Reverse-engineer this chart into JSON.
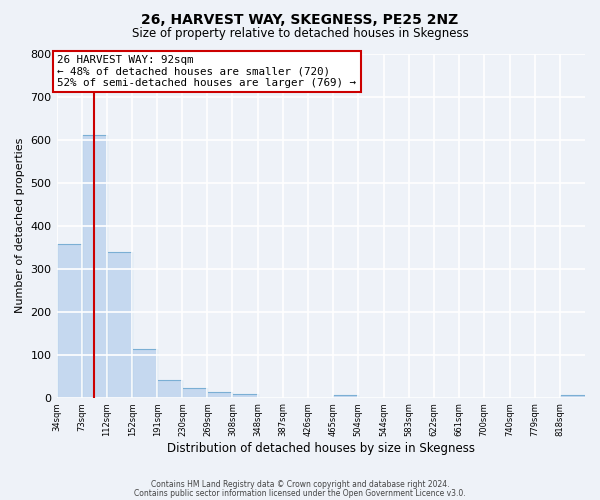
{
  "title": "26, HARVEST WAY, SKEGNESS, PE25 2NZ",
  "subtitle": "Size of property relative to detached houses in Skegness",
  "xlabel": "Distribution of detached houses by size in Skegness",
  "ylabel": "Number of detached properties",
  "bin_edges": [
    34,
    73,
    112,
    152,
    191,
    230,
    269,
    308,
    348,
    387,
    426,
    465,
    504,
    544,
    583,
    622,
    661,
    700,
    740,
    779,
    818
  ],
  "bin_labels": [
    "34sqm",
    "73sqm",
    "112sqm",
    "152sqm",
    "191sqm",
    "230sqm",
    "269sqm",
    "308sqm",
    "348sqm",
    "387sqm",
    "426sqm",
    "465sqm",
    "504sqm",
    "544sqm",
    "583sqm",
    "622sqm",
    "661sqm",
    "700sqm",
    "740sqm",
    "779sqm",
    "818sqm"
  ],
  "bar_heights": [
    357,
    611,
    340,
    113,
    40,
    22,
    13,
    8,
    0,
    0,
    0,
    5,
    0,
    0,
    0,
    0,
    0,
    0,
    0,
    0,
    5
  ],
  "bar_color": "#c5d8ef",
  "bar_edge_color": "#7bafd4",
  "property_size": 92,
  "vline_color": "#cc0000",
  "annotation_text": "26 HARVEST WAY: 92sqm\n← 48% of detached houses are smaller (720)\n52% of semi-detached houses are larger (769) →",
  "annotation_box_color": "#ffffff",
  "annotation_box_edge": "#cc0000",
  "ylim": [
    0,
    800
  ],
  "yticks": [
    0,
    100,
    200,
    300,
    400,
    500,
    600,
    700,
    800
  ],
  "background_color": "#eef2f8",
  "grid_color": "#ffffff",
  "footer_line1": "Contains HM Land Registry data © Crown copyright and database right 2024.",
  "footer_line2": "Contains public sector information licensed under the Open Government Licence v3.0."
}
